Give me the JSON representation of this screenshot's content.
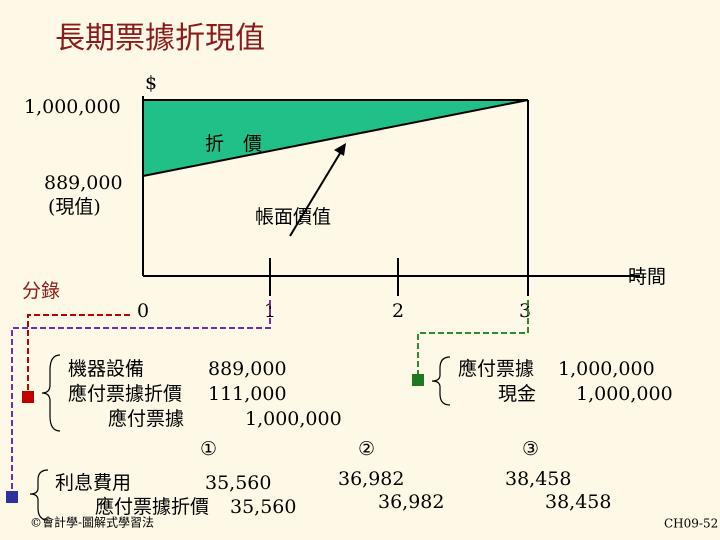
{
  "title": "長期票據折現值",
  "graph": {
    "y_unit": "$",
    "y_top": "1,000,000",
    "discount": "折　價",
    "carrying": "帳面價值",
    "y_pv": "889,000",
    "pv_note": "(現值)",
    "x_label": "時間",
    "periods": [
      "0",
      "1",
      "2",
      "3"
    ]
  },
  "entries_label": "分錄",
  "entry0": {
    "rows": [
      [
        "機器設備",
        "889,000"
      ],
      [
        "應付票據折價",
        "111,000"
      ],
      [
        "應付票據",
        "1,000,000"
      ]
    ]
  },
  "entry3_issue": {
    "rows": [
      [
        "應付票據",
        "1,000,000"
      ],
      [
        "現金",
        "1,000,000"
      ]
    ]
  },
  "interest": {
    "rows": [
      [
        "利息費用",
        "35,560"
      ],
      [
        "應付票據折價",
        "35,560"
      ]
    ]
  },
  "markers": [
    "①",
    "②",
    "③"
  ],
  "period2": [
    "36,982",
    "36,982"
  ],
  "period3": [
    "38,458",
    "38,458"
  ],
  "footer": {
    "left": "©會計學-圖解式學習法",
    "right": "CH09-52"
  }
}
